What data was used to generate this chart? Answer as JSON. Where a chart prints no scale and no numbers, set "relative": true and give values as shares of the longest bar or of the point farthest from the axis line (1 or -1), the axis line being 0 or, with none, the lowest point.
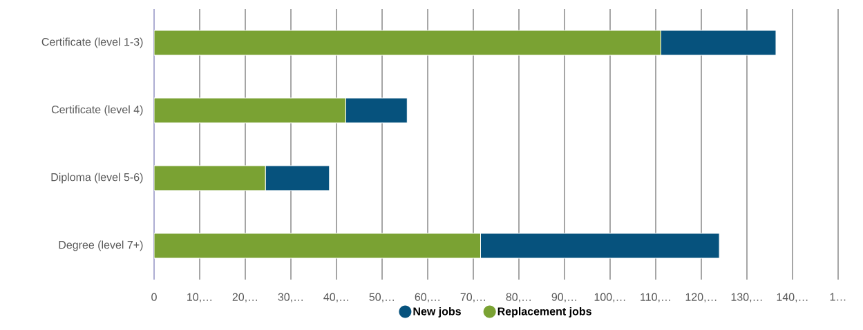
{
  "chart_data": {
    "type": "bar",
    "orientation": "horizontal",
    "stacked": true,
    "relative": true,
    "categories": [
      "Certificate (level 1-3)",
      "Certificate (level 4)",
      "Diploma (level 5-6)",
      "Degree (level 7+)"
    ],
    "series": [
      {
        "name": "Replacement jobs",
        "color": "#7aa233",
        "values": [
          0.815,
          0.308,
          0.179,
          0.525
        ]
      },
      {
        "name": "New jobs",
        "color": "#06527d",
        "values": [
          0.185,
          0.099,
          0.103,
          0.384
        ]
      }
    ],
    "annotations": [
      "0",
      "10,…",
      "20,…",
      "30,…",
      "40,…",
      "50,…",
      "60,…",
      "70,…",
      "80,…",
      "90,…",
      "100,…",
      "110,…",
      "120,…",
      "130,…",
      "140,…",
      "1…"
    ],
    "grid": "x",
    "legend": "bottom"
  }
}
